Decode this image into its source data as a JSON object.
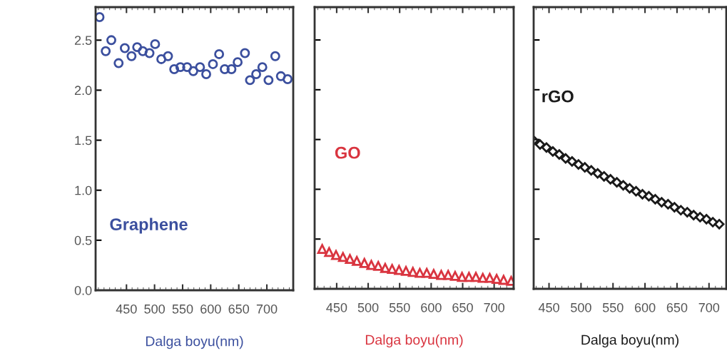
{
  "chart_data": [
    {
      "type": "scatter",
      "xlabel": "Dalga boyu(nm)",
      "xlim": [
        395,
        747
      ],
      "ylim": [
        0,
        2.83
      ],
      "xticks": [
        450,
        500,
        550,
        600,
        650,
        700
      ],
      "yticks": [
        {
          "value": 0,
          "label": "0.0"
        },
        0.5,
        {
          "value": 1,
          "label": "1.0"
        },
        1.5,
        {
          "value": 2,
          "label": "2.0"
        },
        2.5
      ],
      "marker": "circle",
      "grid": false,
      "legend": false,
      "series": [
        {
          "name": "Graphene",
          "color": "#3b4f9e",
          "x": [
            402,
            413,
            423,
            436,
            447,
            459,
            469,
            479,
            491,
            501,
            512,
            524,
            535,
            546,
            558,
            569,
            581,
            592,
            604,
            615,
            625,
            637,
            648,
            661,
            670,
            681,
            692,
            703,
            715,
            725,
            737
          ],
          "values": [
            2.73,
            2.39,
            2.5,
            2.27,
            2.42,
            2.34,
            2.43,
            2.39,
            2.37,
            2.46,
            2.31,
            2.34,
            2.21,
            2.23,
            2.23,
            2.19,
            2.23,
            2.16,
            2.26,
            2.36,
            2.21,
            2.21,
            2.28,
            2.37,
            2.1,
            2.16,
            2.23,
            2.1,
            2.34,
            2.14,
            2.11
          ]
        }
      ]
    },
    {
      "type": "scatter",
      "xlabel": "Dalga boyu(nm)",
      "xlim": [
        415,
        731
      ],
      "ylim": [
        0,
        2.83
      ],
      "xticks": [
        450,
        500,
        550,
        600,
        650,
        700
      ],
      "yticks": [
        0.0,
        0.5,
        1.0,
        1.5,
        2.0,
        2.5
      ],
      "tick_labels": "x",
      "marker": "triangle",
      "grid": false,
      "legend": false,
      "series": [
        {
          "name": "GO",
          "color": "#d9343f",
          "x": [
            427,
            438,
            449,
            460,
            471,
            482,
            494,
            505,
            516,
            527,
            538,
            549,
            560,
            571,
            582,
            593,
            604,
            616,
            627,
            638,
            649,
            660,
            671,
            682,
            693,
            704,
            715,
            727
          ],
          "values": [
            0.4,
            0.37,
            0.34,
            0.32,
            0.3,
            0.28,
            0.26,
            0.24,
            0.23,
            0.21,
            0.2,
            0.19,
            0.18,
            0.17,
            0.16,
            0.16,
            0.15,
            0.14,
            0.14,
            0.13,
            0.12,
            0.12,
            0.12,
            0.11,
            0.11,
            0.1,
            0.09,
            0.08
          ]
        }
      ]
    },
    {
      "type": "scatter",
      "xlabel": "Dalga boyu(nm)",
      "xlim": [
        426,
        727
      ],
      "ylim": [
        0,
        2.83
      ],
      "xticks": [
        450,
        500,
        550,
        600,
        650,
        700
      ],
      "yticks": [
        0.0,
        0.5,
        1.0,
        1.5,
        2.0,
        2.5
      ],
      "tick_labels": "x",
      "marker": "diamond",
      "grid": false,
      "legend": false,
      "series": [
        {
          "name": "rGO",
          "color": "#1a1a1a",
          "x": [
            426,
            436,
            446,
            456,
            466,
            476,
            486,
            496,
            506,
            516,
            526,
            536,
            546,
            556,
            566,
            576,
            586,
            596,
            606,
            616,
            626,
            636,
            646,
            656,
            666,
            676,
            686,
            696,
            706,
            716
          ],
          "values": [
            1.49,
            1.45,
            1.42,
            1.38,
            1.35,
            1.31,
            1.28,
            1.25,
            1.22,
            1.19,
            1.16,
            1.13,
            1.1,
            1.07,
            1.04,
            1.01,
            0.98,
            0.95,
            0.93,
            0.9,
            0.87,
            0.85,
            0.82,
            0.79,
            0.77,
            0.74,
            0.72,
            0.7,
            0.67,
            0.65
          ]
        }
      ]
    }
  ]
}
